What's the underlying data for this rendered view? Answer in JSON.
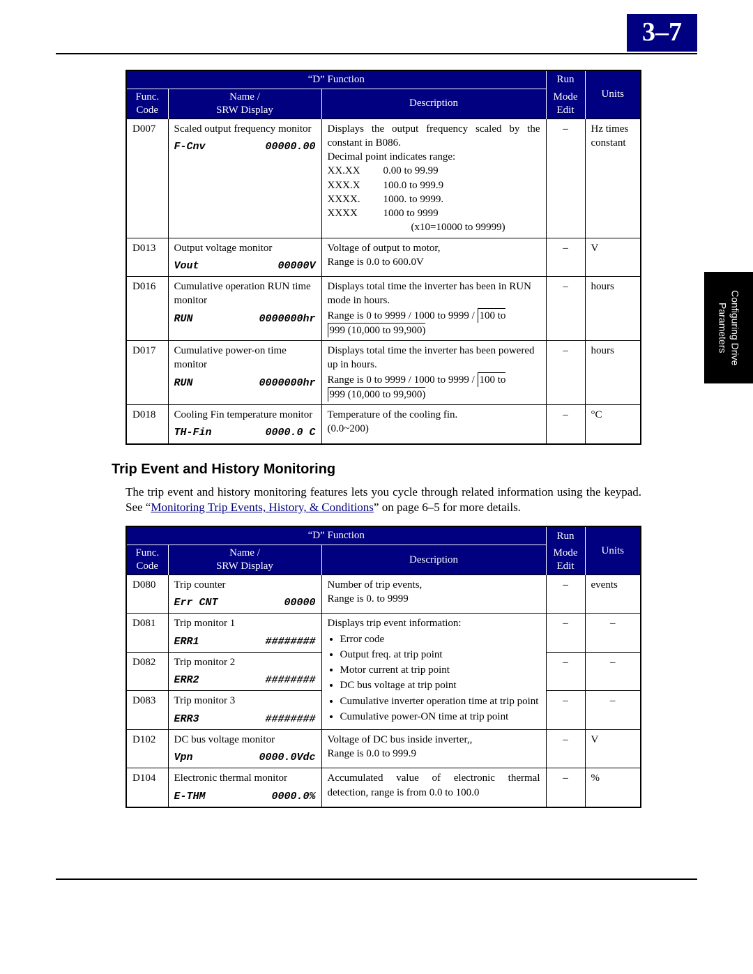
{
  "page_number": "3–7",
  "side_tab_line1": "Configuring Drive",
  "side_tab_line2": "Parameters",
  "headers": {
    "d_function": "“D” Function",
    "run": "Run",
    "func": "Func.",
    "code": "Code",
    "name": "Name /",
    "srw": "SRW Display",
    "description": "Description",
    "mode": "Mode",
    "edit": "Edit",
    "units": "Units"
  },
  "table1": {
    "r0": {
      "code": "D007",
      "name": "Scaled output frequency monitor",
      "desc_line1": "Displays the output frequency scaled by the constant in B086.",
      "desc_line2": "Decimal point indicates range:",
      "ranges": [
        {
          "fmt": "XX.XX",
          "range": "0.00 to 99.99"
        },
        {
          "fmt": "XXX.X",
          "range": "100.0 to 999.9"
        },
        {
          "fmt": "XXXX.",
          "range": "1000. to 9999."
        },
        {
          "fmt": "XXXX",
          "range": "1000 to 9999"
        }
      ],
      "desc_last": "(x10=10000 to 99999)",
      "srw_l": "F-Cnv",
      "srw_r": "00000.00",
      "mode": "–",
      "units": "Hz times constant"
    },
    "r1": {
      "code": "D013",
      "name": "Output voltage monitor",
      "desc": "Voltage of output to motor,<br>Range is 0.0 to 600.0V",
      "srw_l": "Vout",
      "srw_r": "00000V",
      "mode": "–",
      "units": "V"
    },
    "r2": {
      "code": "D016",
      "name": "Cumulative operation RUN time monitor",
      "desc": "Displays total time the inverter has been in RUN mode in hours.<br>Range is 0 to 9999 / 1000 to 9999 / <span class=\"ceil\">100 to</span><span class=\"ceil\">999 (10,000 to 99,900)</span>",
      "srw_l": "RUN",
      "srw_r": "0000000hr",
      "mode": "–",
      "units": "hours"
    },
    "r3": {
      "code": "D017",
      "name": "Cumulative power-on time monitor",
      "desc": "Displays total time the inverter has been powered up in hours.<br>Range is 0 to 9999 / 1000 to 9999 / <span class=\"ceil\">100 to</span><span class=\"ceil\">999 (10,000 to 99,900)</span>",
      "srw_l": "RUN",
      "srw_r": "0000000hr",
      "mode": "–",
      "units": "hours"
    },
    "r4": {
      "code": "D018",
      "name": "Cooling Fin temperature monitor",
      "desc": "Temperature of the cooling fin.<br>(0.0~200)",
      "srw_l": "TH-Fin",
      "srw_r": "0000.0 C",
      "mode": "–",
      "units": "°C"
    }
  },
  "section_heading": "Trip Event and History Monitoring",
  "paragraph_pre": "The trip event and history monitoring features lets you cycle through related information using the keypad. See “",
  "paragraph_link": "Monitoring Trip Events, History, & Conditions",
  "paragraph_post": "” on page 6–5 for more details.",
  "table2": {
    "r0": {
      "code": "D080",
      "name": "Trip counter",
      "desc": "Number of trip events,<br>Range is 0. to 9999",
      "srw_l": "Err CNT",
      "srw_r": "00000",
      "mode": "–",
      "units": "events"
    },
    "r1": {
      "code": "D081",
      "name": "Trip monitor 1",
      "srw_l": "ERR1",
      "srw_r": "########",
      "mode": "–",
      "units": "–"
    },
    "r2": {
      "code": "D082",
      "name": "Trip monitor 2",
      "srw_l": "ERR2",
      "srw_r": "########",
      "mode": "–",
      "units": "–"
    },
    "r3": {
      "code": "D083",
      "name": "Trip monitor 3",
      "srw_l": "ERR3",
      "srw_r": "########",
      "mode": "–",
      "units": "–"
    },
    "desc_group": {
      "lead": "Displays trip event information:",
      "bullets": [
        "Error code",
        "Output freq. at trip point",
        "Motor current at trip point",
        "DC bus voltage at trip point",
        "Cumulative inverter operation time at trip point",
        "Cumulative power-ON time at trip point"
      ]
    },
    "r4": {
      "code": "D102",
      "name": "DC bus voltage monitor",
      "desc": "Voltage of DC bus inside inverter,,<br>Range is 0.0 to 999.9",
      "srw_l": "Vpn",
      "srw_r": "0000.0Vdc",
      "mode": "–",
      "units": "V"
    },
    "r5": {
      "code": "D104",
      "name": "Electronic thermal monitor",
      "desc": "Accumulated value of electronic thermal detection, range is from 0.0 to 100.0",
      "srw_l": "E-THM",
      "srw_r": "0000.0%",
      "mode": "–",
      "units": "%"
    }
  }
}
